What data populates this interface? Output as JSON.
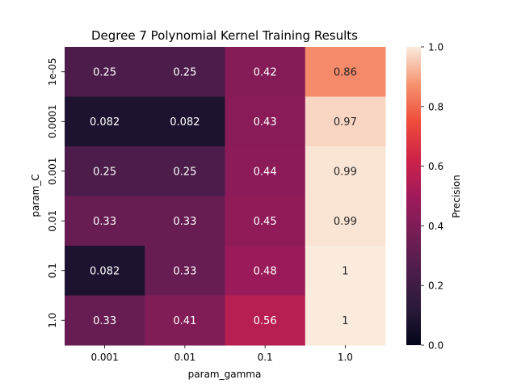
{
  "chart_data": {
    "type": "heatmap",
    "title": "Degree 7 Polynomial Kernel Training Results",
    "xlabel": "param_gamma",
    "ylabel": "param_C",
    "x_categories": [
      "0.001",
      "0.01",
      "0.1",
      "1.0"
    ],
    "y_categories": [
      "1e-05",
      "0.0001",
      "0.001",
      "0.01",
      "0.1",
      "1.0"
    ],
    "values": [
      [
        0.25,
        0.25,
        0.42,
        0.86
      ],
      [
        0.082,
        0.082,
        0.43,
        0.97
      ],
      [
        0.25,
        0.25,
        0.44,
        0.99
      ],
      [
        0.33,
        0.33,
        0.45,
        0.99
      ],
      [
        0.082,
        0.33,
        0.48,
        1
      ],
      [
        0.33,
        0.41,
        0.56,
        1
      ]
    ],
    "value_labels": [
      [
        "0.25",
        "0.25",
        "0.42",
        "0.86"
      ],
      [
        "0.082",
        "0.082",
        "0.43",
        "0.97"
      ],
      [
        "0.25",
        "0.25",
        "0.44",
        "0.99"
      ],
      [
        "0.33",
        "0.33",
        "0.45",
        "0.99"
      ],
      [
        "0.082",
        "0.33",
        "0.48",
        "1"
      ],
      [
        "0.33",
        "0.41",
        "0.56",
        "1"
      ]
    ],
    "colorbar": {
      "label": "Precision",
      "range": [
        0.0,
        1.0
      ],
      "ticks": [
        "0.0",
        "0.2",
        "0.4",
        "0.6",
        "0.8",
        "1.0"
      ],
      "colormap": "rocket"
    },
    "grid": false
  }
}
